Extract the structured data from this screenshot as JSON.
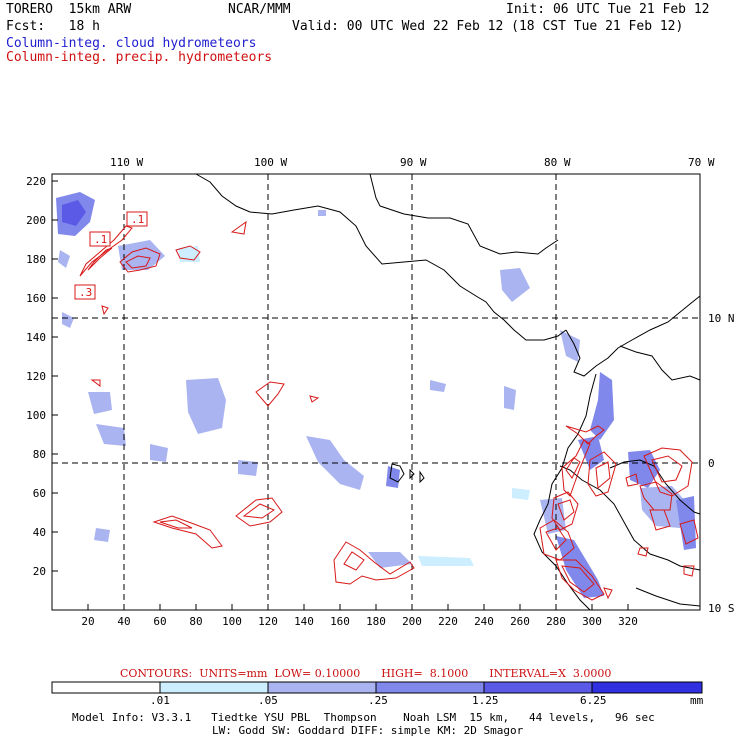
{
  "header": {
    "model": "TORERO  15km ARW",
    "org": "NCAR/MMM",
    "init": "Init: 06 UTC Tue 21 Feb 12",
    "fcst": "Fcst:   18 h",
    "valid": "Valid: 00 UTC Wed 22 Feb 12 (18 CST Tue 21 Feb 12)",
    "field_cloud": "Column-integ. cloud hydrometeors",
    "field_precip": "Column-integ. precip. hydrometeors"
  },
  "map": {
    "top_lon_labels": [
      "110 W",
      "100 W",
      "90 W",
      "80 W",
      "70 W"
    ],
    "right_lat_labels": [
      "10 N",
      "0",
      "10 S"
    ],
    "left_y_ticks": [
      "220",
      "200",
      "180",
      "160",
      "140",
      "120",
      "100",
      "80",
      "60",
      "40",
      "20"
    ],
    "bottom_x_ticks": [
      "20",
      "40",
      "60",
      "80",
      "100",
      "120",
      "140",
      "160",
      "180",
      "200",
      "220",
      "240",
      "260",
      "280",
      "300",
      "320"
    ],
    "contour_labels": [
      ".1",
      ".1",
      ".3"
    ]
  },
  "contours_note": "CONTOURS:  UNITS=mm  LOW= 0.10000      HIGH=  8.1000      INTERVAL=X  3.0000",
  "colorbar": {
    "labels": [
      ".01",
      ".05",
      ".25",
      "1.25",
      "6.25"
    ],
    "unit": "mm",
    "colors": [
      "#ffffff",
      "#cceeff",
      "#aab4f0",
      "#8088ec",
      "#5a5ae6",
      "#3030e0"
    ]
  },
  "footer": {
    "line1": "Model Info: V3.3.1   Tiedtke YSU PBL  Thompson    Noah LSM  15 km,   44 levels,   96 sec",
    "line2": "LW: Godd SW: Goddard DIFF: simple KM: 2D Smagor"
  }
}
